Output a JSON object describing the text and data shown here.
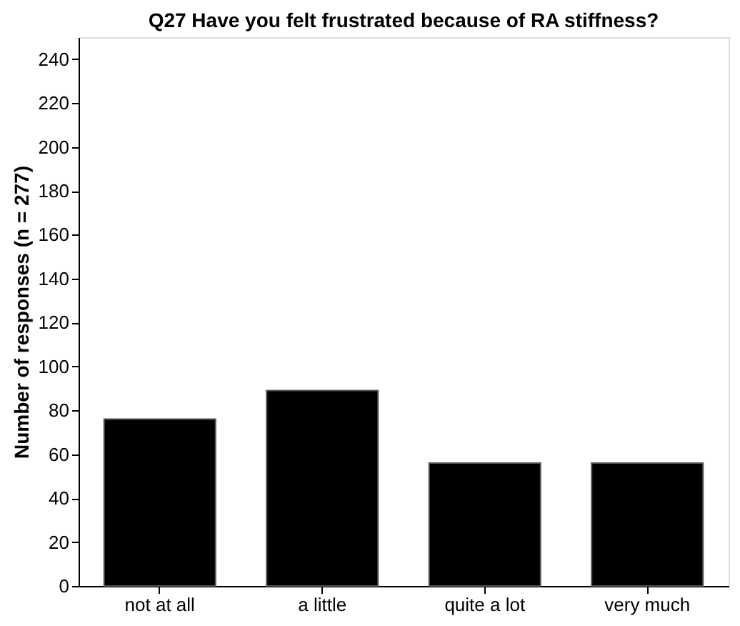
{
  "chart_data": {
    "type": "bar",
    "title": "Q27 Have you felt frustrated because of RA stiffness?",
    "ylabel": "Number of responses (n = 277)",
    "categories": [
      "not at all",
      "a little",
      "quite a lot",
      "very much"
    ],
    "values": [
      76,
      89,
      56,
      56
    ],
    "color": "#000000",
    "ylim": [
      0,
      250
    ],
    "yticks": [
      0,
      20,
      40,
      60,
      80,
      100,
      120,
      140,
      160,
      180,
      200,
      220,
      240
    ],
    "grid": false
  }
}
